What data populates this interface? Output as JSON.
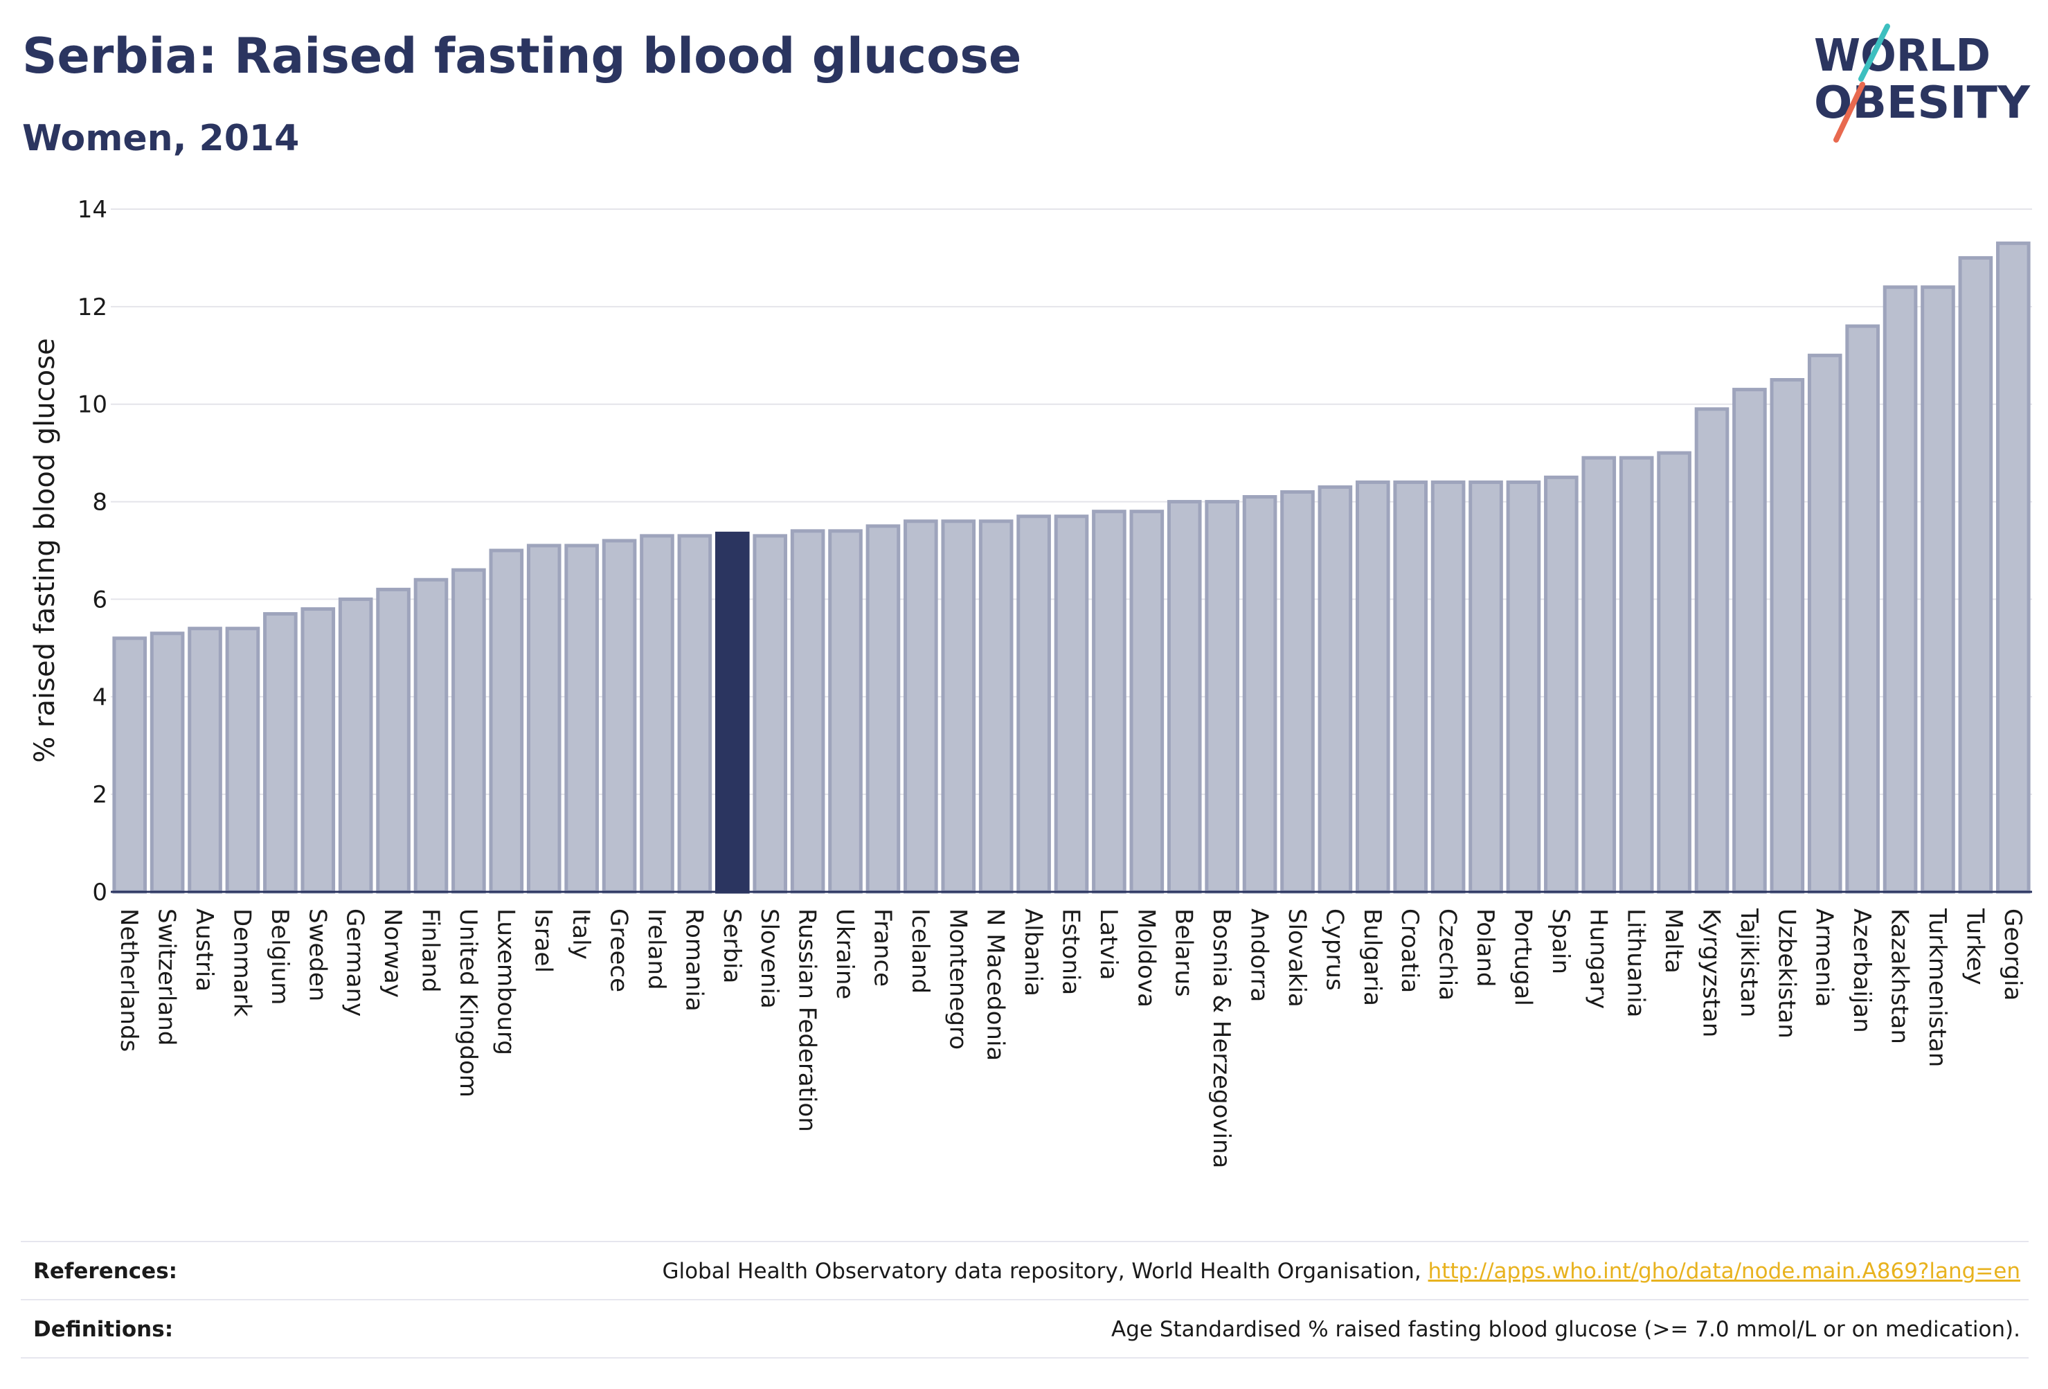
{
  "title": "Serbia: Raised fasting blood glucose",
  "subtitle": "Women, 2014",
  "logo": {
    "line1": "WORLD",
    "line2": "OBESITY"
  },
  "colors": {
    "bar_default": "#babfcf",
    "bar_default_stroke": "#9ea4bc",
    "bar_highlight": "#2b3560",
    "title": "#2b3560",
    "link": "#e8b21e",
    "logo_teal": "#3dbfbf",
    "logo_coral": "#e8694f"
  },
  "chart_data": {
    "type": "bar",
    "title": "Serbia: Raised fasting blood glucose",
    "subtitle": "Women, 2014",
    "xlabel": "",
    "ylabel": "% raised fasting blood glucose",
    "ylim": [
      0,
      14
    ],
    "yticks": [
      0,
      2,
      4,
      6,
      8,
      10,
      12,
      14
    ],
    "grid": true,
    "highlight": "Serbia",
    "categories": [
      "Netherlands",
      "Switzerland",
      "Austria",
      "Denmark",
      "Belgium",
      "Sweden",
      "Germany",
      "Norway",
      "Finland",
      "United Kingdom",
      "Luxembourg",
      "Israel",
      "Italy",
      "Greece",
      "Ireland",
      "Romania",
      "Serbia",
      "Slovenia",
      "Russian Federation",
      "Ukraine",
      "France",
      "Iceland",
      "Montenegro",
      "N Macedonia",
      "Albania",
      "Estonia",
      "Latvia",
      "Moldova",
      "Belarus",
      "Bosnia & Herzegovina",
      "Andorra",
      "Slovakia",
      "Cyprus",
      "Bulgaria",
      "Croatia",
      "Czechia",
      "Poland",
      "Portugal",
      "Spain",
      "Hungary",
      "Lithuania",
      "Malta",
      "Kyrgyzstan",
      "Tajikistan",
      "Uzbekistan",
      "Armenia",
      "Azerbaijan",
      "Kazakhstan",
      "Turkmenistan",
      "Turkey",
      "Georgia"
    ],
    "values": [
      5.2,
      5.3,
      5.4,
      5.4,
      5.7,
      5.8,
      6.0,
      6.2,
      6.4,
      6.6,
      7.0,
      7.1,
      7.1,
      7.2,
      7.3,
      7.3,
      7.35,
      7.3,
      7.4,
      7.4,
      7.5,
      7.6,
      7.6,
      7.6,
      7.7,
      7.7,
      7.8,
      7.8,
      8.0,
      8.0,
      8.1,
      8.2,
      8.3,
      8.4,
      8.4,
      8.4,
      8.4,
      8.4,
      8.5,
      8.9,
      8.9,
      9.0,
      9.9,
      10.3,
      10.5,
      11.0,
      11.6,
      12.4,
      12.4,
      13.0,
      13.3
    ]
  },
  "footer": {
    "references_label": "References:",
    "references_text": "Global Health Observatory data repository, World Health Organisation, ",
    "references_link": "http://apps.who.int/gho/data/node.main.A869?lang=en",
    "definitions_label": "Definitions:",
    "definitions_text": "Age Standardised % raised fasting blood glucose (>= 7.0 mmol/L or on medication)."
  }
}
